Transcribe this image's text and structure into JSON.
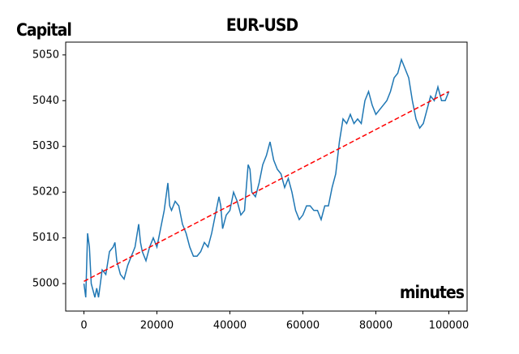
{
  "chart_data": {
    "type": "line",
    "title": "EUR-USD",
    "y_label": "Capital",
    "x_label": "minutes",
    "xlim": [
      -5000,
      105000
    ],
    "ylim": [
      4994,
      5052.8
    ],
    "xticks": [
      0,
      20000,
      40000,
      60000,
      80000,
      100000
    ],
    "yticks": [
      5000,
      5010,
      5020,
      5030,
      5040,
      5050
    ],
    "series": [
      {
        "color": "#1f77b4",
        "dash": false,
        "x": [
          0,
          500,
          1000,
          1500,
          2000,
          3000,
          3500,
          4000,
          5000,
          6000,
          7000,
          8000,
          8500,
          9000,
          10000,
          11000,
          12000,
          13000,
          14000,
          15000,
          15500,
          16000,
          17000,
          18000,
          19000,
          20000,
          21000,
          22000,
          23000,
          23500,
          24000,
          25000,
          26000,
          27000,
          28000,
          29000,
          30000,
          31000,
          32000,
          33000,
          34000,
          35000,
          36000,
          37000,
          37500,
          38000,
          39000,
          40000,
          41000,
          42000,
          43000,
          44000,
          45000,
          45500,
          46000,
          47000,
          48000,
          49000,
          50000,
          51000,
          52000,
          53000,
          54000,
          55000,
          56000,
          57000,
          58000,
          59000,
          60000,
          61000,
          62000,
          63000,
          64000,
          65000,
          66000,
          67000,
          68000,
          69000,
          70000,
          71000,
          72000,
          73000,
          74000,
          75000,
          76000,
          77000,
          78000,
          79000,
          80000,
          81000,
          82000,
          83000,
          84000,
          85000,
          86000,
          87000,
          88000,
          89000,
          90000,
          91000,
          92000,
          93000,
          94000,
          95000,
          96000,
          97000,
          98000,
          99000,
          100000
        ],
        "values": [
          5000,
          4997,
          5011,
          5008,
          5000,
          4997,
          4999,
          4997,
          5003,
          5002,
          5007,
          5008,
          5009,
          5005,
          5002,
          5001,
          5004,
          5006,
          5008,
          5013,
          5009,
          5007,
          5005,
          5008,
          5010,
          5008,
          5012,
          5016,
          5022,
          5017,
          5016,
          5018,
          5017,
          5013,
          5011,
          5008,
          5006,
          5006,
          5007,
          5009,
          5008,
          5011,
          5015,
          5019,
          5017,
          5012,
          5015,
          5016,
          5020,
          5018,
          5015,
          5016,
          5026,
          5025,
          5020,
          5019,
          5022,
          5026,
          5028,
          5031,
          5027,
          5025,
          5024,
          5021,
          5023,
          5020,
          5016,
          5014,
          5015,
          5017,
          5017,
          5016,
          5016,
          5014,
          5017,
          5017,
          5021,
          5024,
          5031,
          5036,
          5035,
          5037,
          5035,
          5036,
          5035,
          5040,
          5042,
          5039,
          5037,
          5038,
          5039,
          5040,
          5042,
          5045,
          5046,
          5049,
          5047,
          5045,
          5040,
          5036,
          5034,
          5035,
          5038,
          5041,
          5040,
          5043,
          5040,
          5040,
          5042
        ]
      },
      {
        "color": "#ff0000",
        "dash": true,
        "x": [
          0,
          100000
        ],
        "values": [
          5000.5,
          5042
        ]
      }
    ]
  }
}
